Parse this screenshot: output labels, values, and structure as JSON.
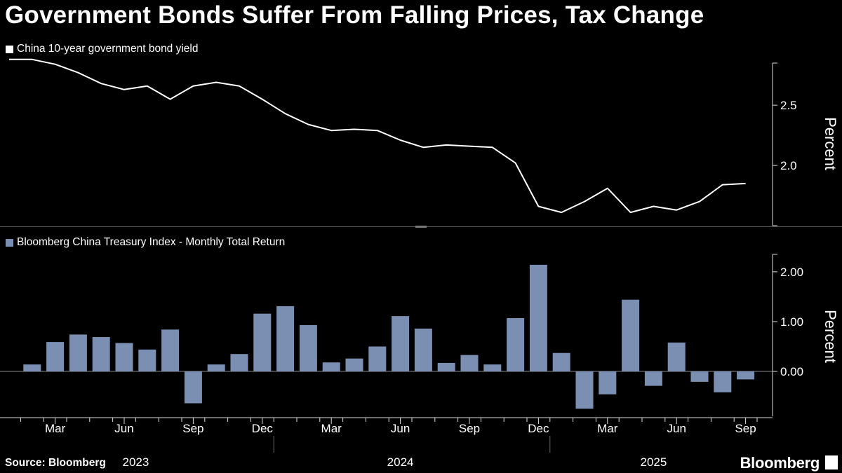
{
  "title": "Government Bonds Suffer From Falling Prices, Tax Change",
  "source": "Source: Bloomberg",
  "brand": "Bloomberg",
  "chart_data": [
    {
      "type": "line",
      "legend": "China 10-year government bond yield",
      "color": "#ffffff",
      "ylabel": "Percent",
      "yticks": [
        "2.5",
        "2.0"
      ],
      "ylim": [
        1.5,
        2.85
      ],
      "series": [
        {
          "name": "China 10-year government bond yield",
          "x": [
            0,
            1,
            2,
            3,
            4,
            5,
            6,
            7,
            8,
            9,
            10,
            11,
            12,
            13,
            14,
            15,
            16,
            17,
            18,
            19,
            20,
            21,
            22,
            23,
            24,
            25,
            26,
            27,
            28,
            29,
            30,
            31,
            32
          ],
          "values": [
            2.88,
            2.88,
            2.84,
            2.77,
            2.68,
            2.63,
            2.66,
            2.55,
            2.66,
            2.69,
            2.66,
            2.55,
            2.43,
            2.34,
            2.29,
            2.3,
            2.29,
            2.21,
            2.15,
            2.17,
            2.16,
            2.15,
            2.02,
            1.66,
            1.61,
            1.7,
            1.81,
            1.61,
            1.66,
            1.63,
            1.7,
            1.84,
            1.85
          ]
        }
      ]
    },
    {
      "type": "bar",
      "legend": "Bloomberg China Treasury Index - Monthly Total Return",
      "color": "#7b8fb3",
      "ylabel": "Percent",
      "yticks": [
        "2.00",
        "1.00",
        "0.00"
      ],
      "ylim": [
        -0.9,
        2.35
      ],
      "x": [
        1,
        2,
        3,
        4,
        5,
        6,
        7,
        8,
        9,
        10,
        11,
        12,
        13,
        14,
        15,
        16,
        17,
        18,
        19,
        20,
        21,
        22,
        23,
        24,
        25,
        26,
        27,
        28,
        29,
        30,
        31,
        32
      ],
      "values": [
        0.14,
        0.59,
        0.74,
        0.69,
        0.57,
        0.44,
        0.84,
        -0.64,
        0.14,
        0.35,
        1.16,
        1.31,
        0.93,
        0.18,
        0.26,
        0.5,
        1.11,
        0.86,
        0.17,
        0.33,
        0.14,
        1.07,
        2.14,
        0.37,
        -0.75,
        -0.46,
        1.44,
        -0.29,
        0.58,
        -0.21,
        -0.42,
        -0.16
      ]
    }
  ],
  "x_axis": {
    "months": [
      {
        "label": "Mar",
        "x": 2
      },
      {
        "label": "Jun",
        "x": 5
      },
      {
        "label": "Sep",
        "x": 8
      },
      {
        "label": "Dec",
        "x": 11
      },
      {
        "label": "Mar",
        "x": 14
      },
      {
        "label": "Jun",
        "x": 17
      },
      {
        "label": "Sep",
        "x": 20
      },
      {
        "label": "Dec",
        "x": 23
      },
      {
        "label": "Mar",
        "x": 26
      },
      {
        "label": "Jun",
        "x": 29
      },
      {
        "label": "Sep",
        "x": 32
      }
    ],
    "years": [
      {
        "label": "2023",
        "x": 5.5
      },
      {
        "label": "2024",
        "x": 17
      },
      {
        "label": "2025",
        "x": 28
      }
    ]
  }
}
